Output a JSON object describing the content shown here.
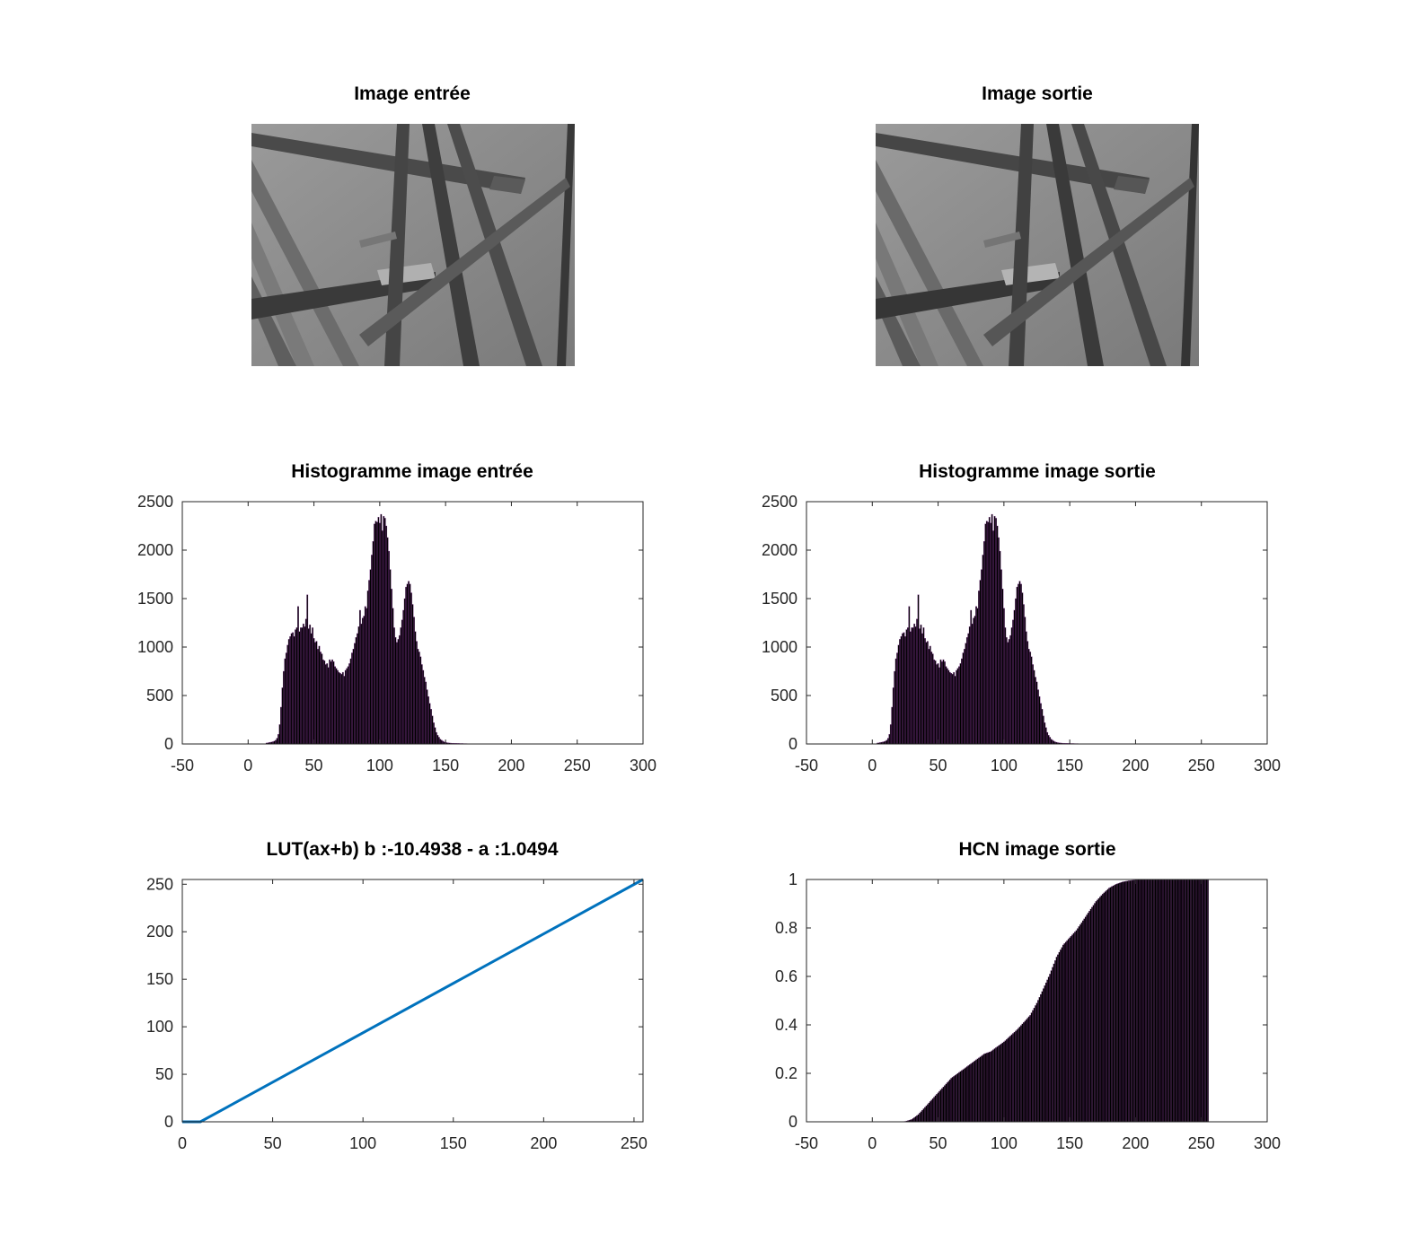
{
  "figure": {
    "background": "#ffffff",
    "panels": [
      {
        "title": "Image entrée",
        "kind": "image"
      },
      {
        "title": "Image sortie",
        "kind": "image"
      },
      {
        "title": "Histogramme image entrée",
        "kind": "chart",
        "chart_index": 0
      },
      {
        "title": "Histogramme image sortie",
        "kind": "chart",
        "chart_index": 1
      },
      {
        "title": "LUT(ax+b) b :-10.4938 - a :1.0494",
        "kind": "chart",
        "chart_index": 2
      },
      {
        "title": "HCN image sortie",
        "kind": "chart",
        "chart_index": 3
      }
    ],
    "images": {
      "description_colors": {
        "background": "#8c8c8c",
        "dark_pencil": "#3c3c3c",
        "mid_pencil": "#6e6e6e",
        "light_pencil": "#a8a8a8",
        "highlight": "#cfcfcf"
      }
    }
  },
  "chart_data": [
    {
      "type": "bar",
      "title": "Histogramme image entrée",
      "xlabel": "",
      "ylabel": "",
      "xlim": [
        -50,
        300
      ],
      "ylim": [
        0,
        2500
      ],
      "xticks": [
        "-50",
        "0",
        "50",
        "100",
        "150",
        "200",
        "250",
        "300"
      ],
      "yticks": [
        "0",
        "500",
        "1000",
        "1500",
        "2000",
        "2500"
      ],
      "bar_color": "#000000",
      "edge_color": "#7e2f8e",
      "x_start": 14,
      "values": [
        10,
        12,
        15,
        18,
        20,
        24,
        30,
        40,
        60,
        100,
        200,
        380,
        580,
        750,
        880,
        940,
        1020,
        1080,
        1110,
        1140,
        1150,
        1110,
        1180,
        1200,
        1420,
        1160,
        1200,
        1200,
        1240,
        1210,
        1290,
        1540,
        1190,
        1230,
        1140,
        1200,
        1090,
        1050,
        1060,
        980,
        1010,
        950,
        930,
        870,
        860,
        820,
        830,
        790,
        870,
        850,
        870,
        850,
        800,
        780,
        760,
        740,
        730,
        720,
        740,
        700,
        760,
        780,
        800,
        830,
        880,
        940,
        980,
        1040,
        1100,
        1140,
        1210,
        1380,
        1240,
        1300,
        1320,
        1420,
        1400,
        1580,
        1690,
        1800,
        1950,
        2090,
        2270,
        2300,
        2290,
        2340,
        2280,
        2370,
        2200,
        2350,
        2330,
        2250,
        2130,
        1990,
        1800,
        1600,
        1400,
        1200,
        1100,
        1050,
        1080,
        1120,
        1200,
        1280,
        1380,
        1500,
        1620,
        1650,
        1680,
        1650,
        1560,
        1440,
        1310,
        1160,
        1060,
        980,
        950,
        900,
        820,
        760,
        690,
        640,
        560,
        490,
        420,
        360,
        290,
        220,
        170,
        120,
        90,
        70,
        50,
        40,
        30,
        22,
        18,
        14,
        12,
        10,
        9,
        8,
        8,
        7,
        7,
        6,
        6,
        5,
        5,
        5,
        4,
        4,
        4,
        3,
        3,
        3,
        3,
        2,
        2,
        2,
        2,
        2,
        2,
        1,
        1,
        1,
        1,
        1,
        1
      ]
    },
    {
      "type": "bar",
      "title": "Histogramme image sortie",
      "xlabel": "",
      "ylabel": "",
      "xlim": [
        -50,
        300
      ],
      "ylim": [
        0,
        2500
      ],
      "xticks": [
        "-50",
        "0",
        "50",
        "100",
        "150",
        "200",
        "250",
        "300"
      ],
      "yticks": [
        "0",
        "500",
        "1000",
        "1500",
        "2000",
        "2500"
      ],
      "bar_color": "#000000",
      "edge_color": "#7e2f8e",
      "x_start": 4,
      "values": [
        10,
        12,
        15,
        18,
        20,
        24,
        30,
        40,
        60,
        100,
        200,
        380,
        580,
        750,
        880,
        940,
        1020,
        1080,
        1110,
        1140,
        1150,
        1110,
        1180,
        1200,
        1420,
        1160,
        1200,
        1200,
        1240,
        1210,
        1290,
        1540,
        1190,
        1230,
        1140,
        1200,
        1090,
        1050,
        1060,
        980,
        1010,
        950,
        930,
        870,
        860,
        820,
        830,
        790,
        870,
        850,
        870,
        850,
        800,
        780,
        760,
        740,
        730,
        720,
        740,
        700,
        760,
        780,
        800,
        830,
        880,
        940,
        980,
        1040,
        1100,
        1140,
        1210,
        1380,
        1240,
        1300,
        1320,
        1420,
        1400,
        1580,
        1690,
        1800,
        1950,
        2090,
        2270,
        2300,
        2290,
        2340,
        2280,
        2370,
        2200,
        2350,
        2330,
        2250,
        2130,
        1990,
        1800,
        1600,
        1400,
        1200,
        1100,
        1050,
        1080,
        1120,
        1200,
        1280,
        1380,
        1500,
        1620,
        1650,
        1680,
        1650,
        1560,
        1440,
        1310,
        1160,
        1060,
        980,
        950,
        900,
        820,
        760,
        690,
        640,
        560,
        490,
        420,
        360,
        290,
        220,
        170,
        120,
        90,
        70,
        50,
        40,
        30,
        22,
        18,
        14,
        12,
        10,
        9,
        8,
        8,
        7,
        7,
        6,
        6,
        5,
        5,
        5,
        4,
        4,
        4,
        3,
        3,
        3,
        3,
        2,
        2,
        2,
        2,
        2,
        2,
        1,
        1,
        1,
        1,
        1,
        1
      ]
    },
    {
      "type": "line",
      "title": "LUT(ax+b) b :-10.4938 - a :1.0494",
      "xlabel": "",
      "ylabel": "",
      "xlim": [
        0,
        255
      ],
      "ylim": [
        0,
        255
      ],
      "xticks": [
        "0",
        "50",
        "100",
        "150",
        "200",
        "250"
      ],
      "yticks": [
        "0",
        "50",
        "100",
        "150",
        "200",
        "250"
      ],
      "line_color": "#0072bd",
      "series": [
        {
          "x": [
            0,
            10,
            255
          ],
          "y": [
            0,
            0,
            255
          ]
        }
      ]
    },
    {
      "type": "area",
      "title": "HCN image sortie",
      "xlabel": "",
      "ylabel": "",
      "xlim": [
        -50,
        300
      ],
      "ylim": [
        0,
        1
      ],
      "xticks": [
        "-50",
        "0",
        "50",
        "100",
        "150",
        "200",
        "250",
        "300"
      ],
      "yticks": [
        "0",
        "0.2",
        "0.4",
        "0.6",
        "0.8",
        "1"
      ],
      "fill_color": "#000000",
      "edge_color": "#7e2f8e",
      "x": [
        0,
        20,
        25,
        30,
        35,
        40,
        45,
        50,
        55,
        60,
        65,
        70,
        75,
        80,
        85,
        90,
        95,
        100,
        105,
        110,
        115,
        120,
        125,
        130,
        135,
        140,
        145,
        150,
        155,
        160,
        165,
        170,
        175,
        180,
        185,
        190,
        195,
        200,
        205,
        210,
        255
      ],
      "y": [
        0,
        0,
        0.002,
        0.01,
        0.03,
        0.06,
        0.09,
        0.12,
        0.15,
        0.18,
        0.2,
        0.22,
        0.24,
        0.26,
        0.28,
        0.29,
        0.31,
        0.33,
        0.355,
        0.38,
        0.41,
        0.44,
        0.49,
        0.55,
        0.61,
        0.68,
        0.73,
        0.76,
        0.79,
        0.83,
        0.87,
        0.91,
        0.94,
        0.965,
        0.98,
        0.99,
        0.995,
        0.998,
        1,
        1,
        1
      ]
    }
  ]
}
